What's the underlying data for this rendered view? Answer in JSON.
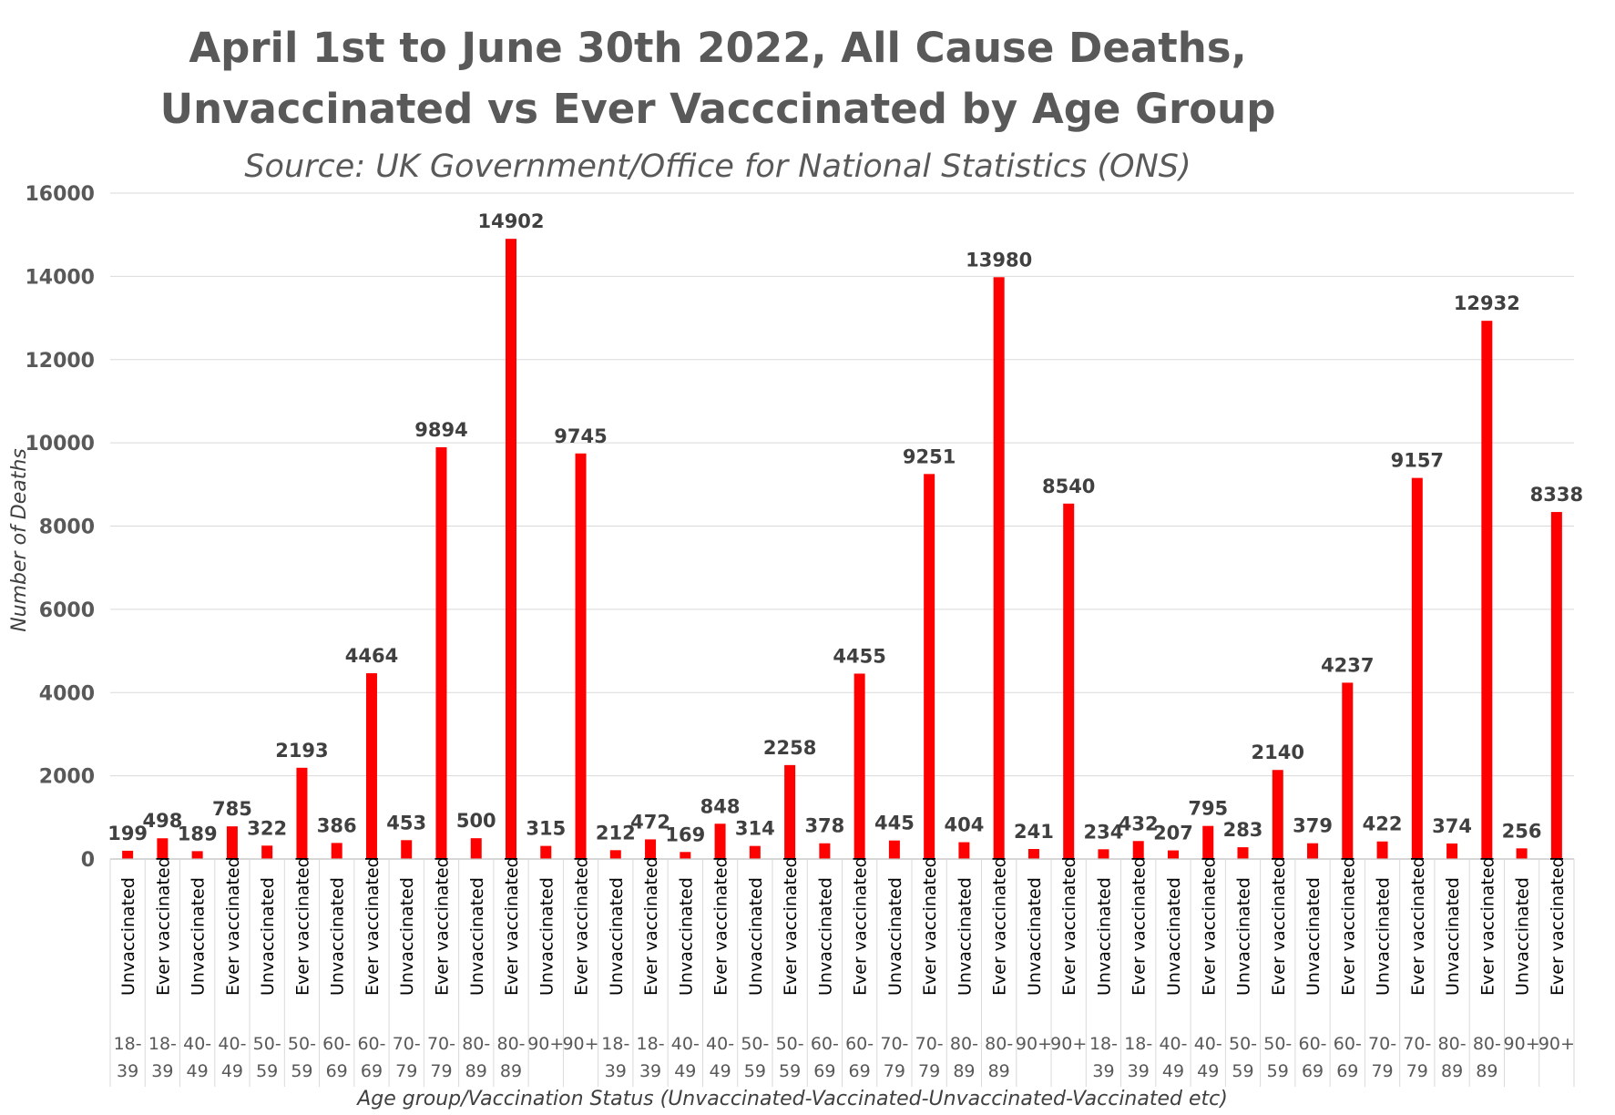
{
  "chart_data": {
    "type": "bar",
    "title_line1": "April 1st to June 30th 2022, All Cause Deaths,",
    "title_line2": "Unvaccinated vs Ever Vacccinated by Age Group",
    "subtitle": "Source: UK Government/Office for National Statistics (ONS)",
    "xlabel": "Age group/Vaccination Status (Unvaccinated-Vaccinated-Unvaccinated-Vaccinated etc)",
    "ylabel": "Number of Deaths",
    "ylim": [
      0,
      16000
    ],
    "yticks": [
      0,
      2000,
      4000,
      6000,
      8000,
      10000,
      12000,
      14000,
      16000
    ],
    "grid": true,
    "bar_color": "#ff0000",
    "categories": [
      {
        "status": "Unvaccinated",
        "age": "18-39"
      },
      {
        "status": "Ever vaccinated",
        "age": "18-39"
      },
      {
        "status": "Unvaccinated",
        "age": "40-49"
      },
      {
        "status": "Ever vaccinated",
        "age": "40-49"
      },
      {
        "status": "Unvaccinated",
        "age": "50-59"
      },
      {
        "status": "Ever vaccinated",
        "age": "50-59"
      },
      {
        "status": "Unvaccinated",
        "age": "60-69"
      },
      {
        "status": "Ever vaccinated",
        "age": "60-69"
      },
      {
        "status": "Unvaccinated",
        "age": "70-79"
      },
      {
        "status": "Ever vaccinated",
        "age": "70-79"
      },
      {
        "status": "Unvaccinated",
        "age": "80-89"
      },
      {
        "status": "Ever vaccinated",
        "age": "80-89"
      },
      {
        "status": "Unvaccinated",
        "age": "90+"
      },
      {
        "status": "Ever vaccinated",
        "age": "90+"
      },
      {
        "status": "Unvaccinated",
        "age": "18-39"
      },
      {
        "status": "Ever vaccinated",
        "age": "18-39"
      },
      {
        "status": "Unvaccinated",
        "age": "40-49"
      },
      {
        "status": "Ever vaccinated",
        "age": "40-49"
      },
      {
        "status": "Unvaccinated",
        "age": "50-59"
      },
      {
        "status": "Ever vaccinated",
        "age": "50-59"
      },
      {
        "status": "Unvaccinated",
        "age": "60-69"
      },
      {
        "status": "Ever vaccinated",
        "age": "60-69"
      },
      {
        "status": "Unvaccinated",
        "age": "70-79"
      },
      {
        "status": "Ever vaccinated",
        "age": "70-79"
      },
      {
        "status": "Unvaccinated",
        "age": "80-89"
      },
      {
        "status": "Ever vaccinated",
        "age": "80-89"
      },
      {
        "status": "Unvaccinated",
        "age": "90+"
      },
      {
        "status": "Ever vaccinated",
        "age": "90+"
      },
      {
        "status": "Unvaccinated",
        "age": "18-39"
      },
      {
        "status": "Ever vaccinated",
        "age": "18-39"
      },
      {
        "status": "Unvaccinated",
        "age": "40-49"
      },
      {
        "status": "Ever vaccinated",
        "age": "40-49"
      },
      {
        "status": "Unvaccinated",
        "age": "50-59"
      },
      {
        "status": "Ever vaccinated",
        "age": "50-59"
      },
      {
        "status": "Unvaccinated",
        "age": "60-69"
      },
      {
        "status": "Ever vaccinated",
        "age": "60-69"
      },
      {
        "status": "Unvaccinated",
        "age": "70-79"
      },
      {
        "status": "Ever vaccinated",
        "age": "70-79"
      },
      {
        "status": "Unvaccinated",
        "age": "80-89"
      },
      {
        "status": "Ever vaccinated",
        "age": "80-89"
      },
      {
        "status": "Unvaccinated",
        "age": "90+"
      },
      {
        "status": "Ever vaccinated",
        "age": "90+"
      }
    ],
    "values": [
      199,
      498,
      189,
      785,
      322,
      2193,
      386,
      4464,
      453,
      9894,
      500,
      14902,
      315,
      9745,
      212,
      472,
      169,
      848,
      314,
      2258,
      378,
      4455,
      445,
      9251,
      404,
      13980,
      241,
      8540,
      234,
      432,
      207,
      795,
      283,
      2140,
      379,
      4237,
      422,
      9157,
      374,
      12932,
      256,
      8338
    ]
  }
}
